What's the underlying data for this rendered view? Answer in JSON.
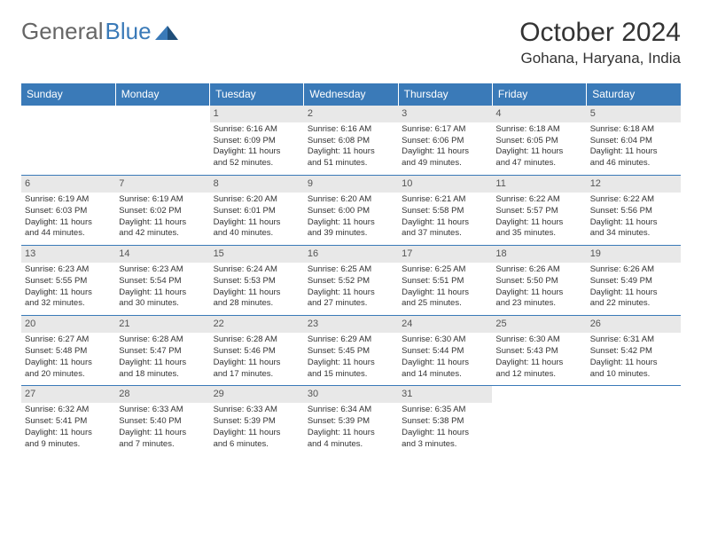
{
  "logo": {
    "text1": "General",
    "text2": "Blue"
  },
  "title": "October 2024",
  "location": "Gohana, Haryana, India",
  "colors": {
    "headerBar": "#3a7ab8",
    "dayBg": "#e8e8e8",
    "text": "#333333",
    "bg": "#ffffff"
  },
  "dayNames": [
    "Sunday",
    "Monday",
    "Tuesday",
    "Wednesday",
    "Thursday",
    "Friday",
    "Saturday"
  ],
  "weeks": [
    [
      {
        "n": "",
        "empty": true
      },
      {
        "n": "",
        "empty": true
      },
      {
        "n": "1",
        "sr": "Sunrise: 6:16 AM",
        "ss": "Sunset: 6:09 PM",
        "d1": "Daylight: 11 hours",
        "d2": "and 52 minutes."
      },
      {
        "n": "2",
        "sr": "Sunrise: 6:16 AM",
        "ss": "Sunset: 6:08 PM",
        "d1": "Daylight: 11 hours",
        "d2": "and 51 minutes."
      },
      {
        "n": "3",
        "sr": "Sunrise: 6:17 AM",
        "ss": "Sunset: 6:06 PM",
        "d1": "Daylight: 11 hours",
        "d2": "and 49 minutes."
      },
      {
        "n": "4",
        "sr": "Sunrise: 6:18 AM",
        "ss": "Sunset: 6:05 PM",
        "d1": "Daylight: 11 hours",
        "d2": "and 47 minutes."
      },
      {
        "n": "5",
        "sr": "Sunrise: 6:18 AM",
        "ss": "Sunset: 6:04 PM",
        "d1": "Daylight: 11 hours",
        "d2": "and 46 minutes."
      }
    ],
    [
      {
        "n": "6",
        "sr": "Sunrise: 6:19 AM",
        "ss": "Sunset: 6:03 PM",
        "d1": "Daylight: 11 hours",
        "d2": "and 44 minutes."
      },
      {
        "n": "7",
        "sr": "Sunrise: 6:19 AM",
        "ss": "Sunset: 6:02 PM",
        "d1": "Daylight: 11 hours",
        "d2": "and 42 minutes."
      },
      {
        "n": "8",
        "sr": "Sunrise: 6:20 AM",
        "ss": "Sunset: 6:01 PM",
        "d1": "Daylight: 11 hours",
        "d2": "and 40 minutes."
      },
      {
        "n": "9",
        "sr": "Sunrise: 6:20 AM",
        "ss": "Sunset: 6:00 PM",
        "d1": "Daylight: 11 hours",
        "d2": "and 39 minutes."
      },
      {
        "n": "10",
        "sr": "Sunrise: 6:21 AM",
        "ss": "Sunset: 5:58 PM",
        "d1": "Daylight: 11 hours",
        "d2": "and 37 minutes."
      },
      {
        "n": "11",
        "sr": "Sunrise: 6:22 AM",
        "ss": "Sunset: 5:57 PM",
        "d1": "Daylight: 11 hours",
        "d2": "and 35 minutes."
      },
      {
        "n": "12",
        "sr": "Sunrise: 6:22 AM",
        "ss": "Sunset: 5:56 PM",
        "d1": "Daylight: 11 hours",
        "d2": "and 34 minutes."
      }
    ],
    [
      {
        "n": "13",
        "sr": "Sunrise: 6:23 AM",
        "ss": "Sunset: 5:55 PM",
        "d1": "Daylight: 11 hours",
        "d2": "and 32 minutes."
      },
      {
        "n": "14",
        "sr": "Sunrise: 6:23 AM",
        "ss": "Sunset: 5:54 PM",
        "d1": "Daylight: 11 hours",
        "d2": "and 30 minutes."
      },
      {
        "n": "15",
        "sr": "Sunrise: 6:24 AM",
        "ss": "Sunset: 5:53 PM",
        "d1": "Daylight: 11 hours",
        "d2": "and 28 minutes."
      },
      {
        "n": "16",
        "sr": "Sunrise: 6:25 AM",
        "ss": "Sunset: 5:52 PM",
        "d1": "Daylight: 11 hours",
        "d2": "and 27 minutes."
      },
      {
        "n": "17",
        "sr": "Sunrise: 6:25 AM",
        "ss": "Sunset: 5:51 PM",
        "d1": "Daylight: 11 hours",
        "d2": "and 25 minutes."
      },
      {
        "n": "18",
        "sr": "Sunrise: 6:26 AM",
        "ss": "Sunset: 5:50 PM",
        "d1": "Daylight: 11 hours",
        "d2": "and 23 minutes."
      },
      {
        "n": "19",
        "sr": "Sunrise: 6:26 AM",
        "ss": "Sunset: 5:49 PM",
        "d1": "Daylight: 11 hours",
        "d2": "and 22 minutes."
      }
    ],
    [
      {
        "n": "20",
        "sr": "Sunrise: 6:27 AM",
        "ss": "Sunset: 5:48 PM",
        "d1": "Daylight: 11 hours",
        "d2": "and 20 minutes."
      },
      {
        "n": "21",
        "sr": "Sunrise: 6:28 AM",
        "ss": "Sunset: 5:47 PM",
        "d1": "Daylight: 11 hours",
        "d2": "and 18 minutes."
      },
      {
        "n": "22",
        "sr": "Sunrise: 6:28 AM",
        "ss": "Sunset: 5:46 PM",
        "d1": "Daylight: 11 hours",
        "d2": "and 17 minutes."
      },
      {
        "n": "23",
        "sr": "Sunrise: 6:29 AM",
        "ss": "Sunset: 5:45 PM",
        "d1": "Daylight: 11 hours",
        "d2": "and 15 minutes."
      },
      {
        "n": "24",
        "sr": "Sunrise: 6:30 AM",
        "ss": "Sunset: 5:44 PM",
        "d1": "Daylight: 11 hours",
        "d2": "and 14 minutes."
      },
      {
        "n": "25",
        "sr": "Sunrise: 6:30 AM",
        "ss": "Sunset: 5:43 PM",
        "d1": "Daylight: 11 hours",
        "d2": "and 12 minutes."
      },
      {
        "n": "26",
        "sr": "Sunrise: 6:31 AM",
        "ss": "Sunset: 5:42 PM",
        "d1": "Daylight: 11 hours",
        "d2": "and 10 minutes."
      }
    ],
    [
      {
        "n": "27",
        "sr": "Sunrise: 6:32 AM",
        "ss": "Sunset: 5:41 PM",
        "d1": "Daylight: 11 hours",
        "d2": "and 9 minutes."
      },
      {
        "n": "28",
        "sr": "Sunrise: 6:33 AM",
        "ss": "Sunset: 5:40 PM",
        "d1": "Daylight: 11 hours",
        "d2": "and 7 minutes."
      },
      {
        "n": "29",
        "sr": "Sunrise: 6:33 AM",
        "ss": "Sunset: 5:39 PM",
        "d1": "Daylight: 11 hours",
        "d2": "and 6 minutes."
      },
      {
        "n": "30",
        "sr": "Sunrise: 6:34 AM",
        "ss": "Sunset: 5:39 PM",
        "d1": "Daylight: 11 hours",
        "d2": "and 4 minutes."
      },
      {
        "n": "31",
        "sr": "Sunrise: 6:35 AM",
        "ss": "Sunset: 5:38 PM",
        "d1": "Daylight: 11 hours",
        "d2": "and 3 minutes."
      },
      {
        "n": "",
        "empty": true
      },
      {
        "n": "",
        "empty": true
      }
    ]
  ]
}
